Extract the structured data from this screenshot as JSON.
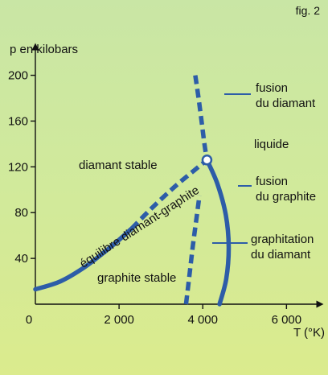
{
  "figure_label": "fig. 2",
  "chart_data": {
    "type": "line",
    "title": "",
    "xlabel": "T (°K)",
    "ylabel": "p en kilobars",
    "xlim": [
      0,
      6800
    ],
    "ylim": [
      0,
      225
    ],
    "x_ticks": [
      0,
      2000,
      4000,
      6000
    ],
    "x_tick_labels": [
      "0",
      "2 000",
      "4 000",
      "6 000"
    ],
    "y_ticks": [
      40,
      80,
      120,
      160,
      200
    ],
    "y_tick_labels": [
      "40",
      "80",
      "120",
      "160",
      "200"
    ],
    "grid": false,
    "triple_point": {
      "x": 4100,
      "y": 126
    },
    "series": [
      {
        "label": "équilibre diamant-graphite",
        "style": "solid-then-dashed",
        "color": "#2d5da8",
        "solid_points": [
          [
            0,
            13
          ],
          [
            600,
            20
          ],
          [
            1200,
            33
          ],
          [
            1800,
            50
          ],
          [
            2300,
            66
          ]
        ],
        "dashed_points": [
          [
            2300,
            66
          ],
          [
            2700,
            81
          ],
          [
            3100,
            95
          ],
          [
            3500,
            108
          ],
          [
            4100,
            126
          ]
        ]
      },
      {
        "label": "fusion du diamant",
        "style": "dashed",
        "color": "#2d5da8",
        "points": [
          [
            3820,
            200
          ],
          [
            3900,
            180
          ],
          [
            3970,
            160
          ],
          [
            4040,
            140
          ],
          [
            4100,
            126
          ]
        ]
      },
      {
        "label": "fusion du graphite",
        "style": "solid",
        "color": "#2d5da8",
        "points": [
          [
            4100,
            126
          ],
          [
            4350,
            105
          ],
          [
            4550,
            78
          ],
          [
            4620,
            50
          ],
          [
            4560,
            22
          ],
          [
            4400,
            0
          ]
        ]
      },
      {
        "label": "graphitation du diamant",
        "style": "dashed",
        "color": "#2d5da8",
        "points": [
          [
            3600,
            0
          ],
          [
            3680,
            25
          ],
          [
            3760,
            50
          ],
          [
            3850,
            75
          ],
          [
            3920,
            95
          ]
        ]
      }
    ],
    "labels": {
      "diamant_stable": "diamant stable",
      "graphite_stable": "graphite stable",
      "liquide": "liquide",
      "equilibre": "équilibre diamant-graphite",
      "fusion_diamant_1": "fusion",
      "fusion_diamant_2": "du diamant",
      "fusion_graphite_1": "fusion",
      "fusion_graphite_2": "du graphite",
      "graphitation_1": "graphitation",
      "graphitation_2": "du diamant"
    }
  }
}
